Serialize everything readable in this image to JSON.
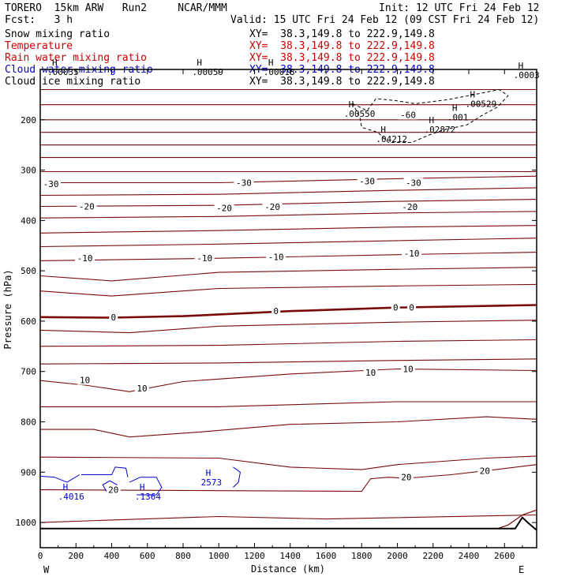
{
  "header": {
    "model": "TORERO",
    "resolution": "15km ARW",
    "run": "Run2",
    "org": "NCAR/MMM",
    "init": "Init: 12 UTC Fri 24 Feb 12",
    "fcst_label": "Fcst:",
    "fcst_value": "3 h",
    "valid": "Valid: 15 UTC Fri 24 Feb 12 (09 CST Fri 24 Feb 12)"
  },
  "fields": [
    {
      "name": "Snow mixing ratio",
      "xy": "XY=  38.3,149.8 to 222.9,149.8",
      "color": "#000000"
    },
    {
      "name": "Temperature",
      "xy": "XY=  38.3,149.8 to 222.9,149.8",
      "color": "#cc0000"
    },
    {
      "name": "Rain water mixing ratio",
      "xy": "XY=  38.3,149.8 to 222.9,149.8",
      "color": "#cc0000"
    },
    {
      "name": "Cloud water mixing ratio",
      "xy": "XY=  38.3,149.8 to 222.9,149.8",
      "color": "#0000cc"
    },
    {
      "name": "Cloud ice mixing ratio",
      "xy": "XY=  38.3,149.8 to 222.9,149.8",
      "color": "#000000"
    }
  ],
  "chart_data": {
    "type": "contour-cross-section",
    "xlabel": "Distance (km)",
    "ylabel": "Pressure (hPa)",
    "xlim": [
      0,
      2780
    ],
    "ylim": [
      1050,
      100
    ],
    "x_ticks": [
      0,
      200,
      400,
      600,
      800,
      1000,
      1200,
      1400,
      1600,
      1800,
      2000,
      2200,
      2400,
      2600
    ],
    "y_ticks": [
      200,
      300,
      400,
      500,
      600,
      700,
      800,
      900,
      1000
    ],
    "west_label": "W",
    "east_label": "E",
    "temperature_lines": [
      {
        "points": [
          [
            0,
            140
          ],
          [
            2780,
            140
          ]
        ]
      },
      {
        "points": [
          [
            0,
            170
          ],
          [
            2780,
            170
          ]
        ]
      },
      {
        "points": [
          [
            0,
            200
          ],
          [
            2780,
            200
          ]
        ]
      },
      {
        "points": [
          [
            0,
            225
          ],
          [
            2780,
            225
          ]
        ]
      },
      {
        "points": [
          [
            0,
            250
          ],
          [
            2780,
            250
          ]
        ]
      },
      {
        "points": [
          [
            0,
            275
          ],
          [
            2780,
            275
          ]
        ]
      },
      {
        "points": [
          [
            0,
            303
          ],
          [
            2780,
            303
          ]
        ]
      },
      {
        "points": [
          [
            0,
            325
          ],
          [
            1000,
            325
          ],
          [
            2000,
            317
          ],
          [
            2780,
            312
          ]
        ]
      },
      {
        "points": [
          [
            0,
            350
          ],
          [
            1000,
            348
          ],
          [
            2000,
            340
          ],
          [
            2780,
            335
          ]
        ]
      },
      {
        "points": [
          [
            0,
            372
          ],
          [
            1000,
            370
          ],
          [
            2000,
            362
          ],
          [
            2780,
            358
          ]
        ]
      },
      {
        "points": [
          [
            0,
            395
          ],
          [
            1000,
            392
          ],
          [
            2000,
            385
          ],
          [
            2780,
            382
          ]
        ]
      },
      {
        "points": [
          [
            0,
            425
          ],
          [
            1000,
            420
          ],
          [
            2000,
            413
          ],
          [
            2780,
            410
          ]
        ]
      },
      {
        "points": [
          [
            0,
            452
          ],
          [
            1000,
            447
          ],
          [
            2000,
            440
          ],
          [
            2780,
            435
          ]
        ]
      },
      {
        "points": [
          [
            0,
            480
          ],
          [
            1000,
            475
          ],
          [
            2000,
            468
          ],
          [
            2780,
            463
          ]
        ]
      },
      {
        "points": [
          [
            0,
            510
          ],
          [
            400,
            520
          ],
          [
            1000,
            503
          ],
          [
            2000,
            497
          ],
          [
            2780,
            493
          ]
        ]
      },
      {
        "points": [
          [
            0,
            540
          ],
          [
            400,
            550
          ],
          [
            1000,
            535
          ],
          [
            2000,
            530
          ],
          [
            2780,
            527
          ]
        ]
      },
      {
        "points": [
          [
            0,
            592
          ],
          [
            400,
            593
          ],
          [
            800,
            590
          ],
          [
            1400,
            580
          ],
          [
            2000,
            573
          ],
          [
            2780,
            568
          ]
        ],
        "bold": true
      },
      {
        "points": [
          [
            0,
            618
          ],
          [
            500,
            623
          ],
          [
            1000,
            610
          ],
          [
            2000,
            602
          ],
          [
            2780,
            598
          ]
        ]
      },
      {
        "points": [
          [
            0,
            650
          ],
          [
            1000,
            648
          ],
          [
            2000,
            640
          ],
          [
            2780,
            637
          ]
        ]
      },
      {
        "points": [
          [
            0,
            685
          ],
          [
            1000,
            683
          ],
          [
            2000,
            678
          ],
          [
            2780,
            675
          ]
        ]
      },
      {
        "points": [
          [
            0,
            718
          ],
          [
            250,
            727
          ],
          [
            500,
            740
          ],
          [
            800,
            720
          ],
          [
            1400,
            705
          ],
          [
            2000,
            695
          ],
          [
            2780,
            698
          ]
        ]
      },
      {
        "points": [
          [
            0,
            770
          ],
          [
            1000,
            770
          ],
          [
            2000,
            760
          ],
          [
            2780,
            760
          ]
        ]
      },
      {
        "points": [
          [
            0,
            815
          ],
          [
            300,
            815
          ],
          [
            500,
            830
          ],
          [
            900,
            820
          ],
          [
            1400,
            805
          ],
          [
            2000,
            800
          ],
          [
            2500,
            790
          ],
          [
            2780,
            795
          ]
        ]
      },
      {
        "points": [
          [
            0,
            870
          ],
          [
            1000,
            872
          ],
          [
            1400,
            890
          ],
          [
            1800,
            895
          ],
          [
            2000,
            885
          ],
          [
            2500,
            872
          ],
          [
            2780,
            868
          ]
        ]
      },
      {
        "points": [
          [
            0,
            935
          ],
          [
            1800,
            938
          ],
          [
            1850,
            913
          ],
          [
            1950,
            910
          ],
          [
            2050,
            912
          ],
          [
            2300,
            905
          ],
          [
            2550,
            895
          ],
          [
            2780,
            885
          ]
        ]
      },
      {
        "points": [
          [
            0,
            1000
          ],
          [
            400,
            995
          ],
          [
            1000,
            988
          ],
          [
            1600,
            993
          ],
          [
            2780,
            985
          ]
        ]
      }
    ],
    "temperature_labels": [
      {
        "text": "-60",
        "x": 2060,
        "y": 190
      },
      {
        "text": "-30",
        "x": 60,
        "y": 327
      },
      {
        "text": "-30",
        "x": 1140,
        "y": 325
      },
      {
        "text": "-30",
        "x": 1830,
        "y": 322
      },
      {
        "text": "-30",
        "x": 2090,
        "y": 325
      },
      {
        "text": "-20",
        "x": 260,
        "y": 372
      },
      {
        "text": "-20",
        "x": 1030,
        "y": 375
      },
      {
        "text": "-20",
        "x": 1300,
        "y": 373
      },
      {
        "text": "-20",
        "x": 2070,
        "y": 373
      },
      {
        "text": "-10",
        "x": 250,
        "y": 475
      },
      {
        "text": "-10",
        "x": 920,
        "y": 475
      },
      {
        "text": "-10",
        "x": 1320,
        "y": 472
      },
      {
        "text": "-10",
        "x": 2080,
        "y": 465
      },
      {
        "text": "0",
        "x": 410,
        "y": 592
      },
      {
        "text": "0",
        "x": 1320,
        "y": 580
      },
      {
        "text": "0",
        "x": 1990,
        "y": 573
      },
      {
        "text": "0",
        "x": 2080,
        "y": 573
      },
      {
        "text": "10",
        "x": 250,
        "y": 717
      },
      {
        "text": "10",
        "x": 570,
        "y": 733
      },
      {
        "text": "10",
        "x": 1850,
        "y": 702
      },
      {
        "text": "10",
        "x": 2060,
        "y": 695
      },
      {
        "text": "20",
        "x": 410,
        "y": 935
      },
      {
        "text": "20",
        "x": 2050,
        "y": 910
      },
      {
        "text": "20",
        "x": 2490,
        "y": 897
      }
    ],
    "ice_contour": [
      [
        1750,
        168
      ],
      [
        1830,
        182
      ],
      [
        1880,
        158
      ],
      [
        1990,
        162
      ],
      [
        2100,
        168
      ],
      [
        2280,
        160
      ],
      [
        2400,
        152
      ],
      [
        2570,
        140
      ],
      [
        2620,
        152
      ],
      [
        2560,
        175
      ],
      [
        2470,
        192
      ],
      [
        2390,
        210
      ],
      [
        2260,
        220
      ],
      [
        2180,
        230
      ],
      [
        2080,
        245
      ],
      [
        1950,
        245
      ],
      [
        1890,
        225
      ],
      [
        1800,
        215
      ],
      [
        1790,
        195
      ],
      [
        1750,
        168
      ]
    ],
    "ice_h_markers": [
      {
        "value": ".00550",
        "x": 1700,
        "y": 180
      },
      {
        "value": ".00529",
        "x": 2380,
        "y": 160
      },
      {
        "value": ".02872",
        "x": 2150,
        "y": 211
      },
      {
        "value": ".04212",
        "x": 1880,
        "y": 230
      },
      {
        "value": ".001",
        "x": 2280,
        "y": 187
      },
      {
        "value": ".0003",
        "x": 2650,
        "y": 103
      },
      {
        "value": ".00059",
        "x": 850,
        "y": 97
      },
      {
        "value": ".00035",
        "x": 40,
        "y": 97
      },
      {
        "value": ".00018",
        "x": 1250,
        "y": 97
      }
    ],
    "cloud_water_markers": [
      {
        "value": ".4016",
        "x": 100,
        "y": 940
      },
      {
        "value": ".1364",
        "x": 530,
        "y": 940
      },
      {
        "value": "2573",
        "x": 900,
        "y": 912
      }
    ],
    "cloud_water_contours": [
      [
        [
          0,
          908
        ],
        [
          80,
          910
        ],
        [
          150,
          920
        ],
        [
          220,
          905
        ]
      ],
      [
        [
          230,
          905
        ],
        [
          400,
          905
        ],
        [
          420,
          890
        ],
        [
          480,
          892
        ],
        [
          490,
          910
        ]
      ],
      [
        [
          350,
          925
        ],
        [
          390,
          917
        ],
        [
          430,
          925
        ],
        [
          420,
          938
        ],
        [
          370,
          938
        ],
        [
          350,
          925
        ]
      ],
      [
        [
          500,
          920
        ],
        [
          560,
          910
        ],
        [
          650,
          910
        ],
        [
          680,
          930
        ],
        [
          650,
          945
        ],
        [
          540,
          945
        ]
      ],
      [
        [
          1080,
          890
        ],
        [
          1120,
          900
        ],
        [
          1110,
          920
        ],
        [
          1080,
          930
        ]
      ]
    ],
    "terrain": [
      [
        0,
        1012
      ],
      [
        2660,
        1012
      ],
      [
        2700,
        990
      ],
      [
        2730,
        1000
      ],
      [
        2780,
        1015
      ]
    ],
    "terrain_red": [
      [
        0,
        1012
      ],
      [
        2400,
        1012
      ],
      [
        2560,
        1012
      ],
      [
        2620,
        1005
      ],
      [
        2700,
        985
      ],
      [
        2780,
        975
      ]
    ]
  }
}
